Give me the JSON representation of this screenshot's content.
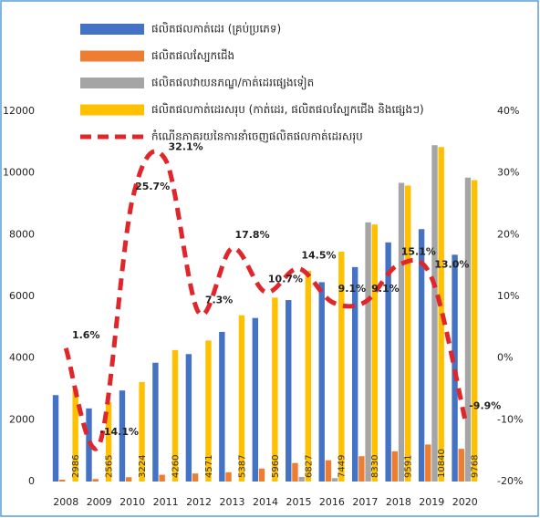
{
  "chart_data": {
    "type": "bar",
    "categories": [
      "2008",
      "2009",
      "2010",
      "2011",
      "2012",
      "2013",
      "2014",
      "2015",
      "2016",
      "2017",
      "2018",
      "2019",
      "2020"
    ],
    "series": [
      {
        "name": "ផលិតផលកាត់ដេរ (គ្រប់ប្រភេទ)",
        "color": "#4472c4",
        "values": [
          2800,
          2370,
          2950,
          3850,
          4130,
          4850,
          5300,
          5880,
          6460,
          6950,
          7750,
          8180,
          7350
        ]
      },
      {
        "name": "ផលិតផលស្បែកជើង",
        "color": "#ed7d31",
        "values": [
          60,
          80,
          140,
          220,
          260,
          300,
          420,
          600,
          690,
          820,
          980,
          1200,
          1060
        ]
      },
      {
        "name": "ផលិតផលវាយនភណ្ឌ/កាត់ដេរផ្សេងទៀត",
        "color": "#a5a5a5",
        "values": [
          null,
          null,
          null,
          null,
          null,
          null,
          null,
          150,
          110,
          8400,
          9680,
          10900,
          9850
        ]
      },
      {
        "name": "ផលិតផលកាត់ដេរសរុប (កាត់ដេរ, ផលិតផលស្បែកជើង និងផ្សេងៗ)",
        "color": "#ffc000",
        "values": [
          2986,
          2565,
          3224,
          4260,
          4571,
          5387,
          5960,
          6827,
          7449,
          8330,
          9591,
          10840,
          9768
        ]
      },
      {
        "name": "កំណើនភាគរយនៃការនាំចេញផលិតផលកាត់ដេរសរុប",
        "color": "#e0262a",
        "type": "line",
        "axis": "y2",
        "values": [
          1.6,
          -14.1,
          25.7,
          32.1,
          7.3,
          17.8,
          10.7,
          14.5,
          9.1,
          9.1,
          15.1,
          13.0,
          -9.9
        ],
        "value_labels": [
          "1.6%",
          "-14.1%",
          "25.7%",
          "32.1%",
          "7.3%",
          "17.8%",
          "10.7%",
          "14.5%",
          "9.1%",
          "9.1%",
          "15.1%",
          "13.0%",
          "-9.9%"
        ]
      }
    ],
    "ylim": [
      0,
      12000
    ],
    "yticks": [
      0,
      2000,
      4000,
      6000,
      8000,
      10000,
      12000
    ],
    "y2lim": [
      -20,
      40
    ],
    "y2ticks": [
      {
        "value": -20,
        "label": "-20%"
      },
      {
        "value": -10,
        "label": "-10%"
      },
      {
        "value": 0,
        "label": "0%"
      },
      {
        "value": 10,
        "label": "10%"
      },
      {
        "value": 20,
        "label": "20%"
      },
      {
        "value": 30,
        "label": "30%"
      },
      {
        "value": 40,
        "label": "40%"
      }
    ],
    "legend": "top"
  }
}
